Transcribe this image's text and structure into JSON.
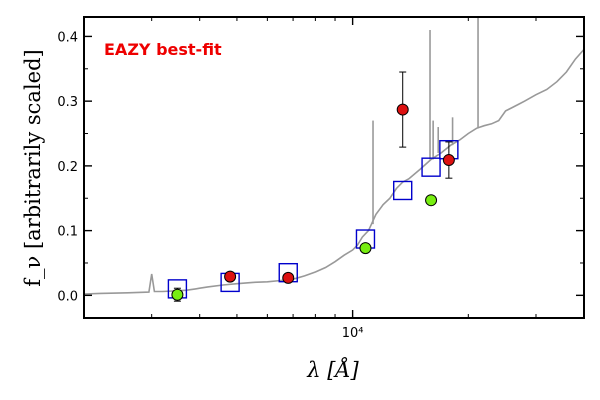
{
  "chart_data": {
    "type": "scatter",
    "annotation": "EAZY best-fit",
    "annotation_color": "#ee0000",
    "xlabel": "λ [Å]",
    "ylabel": "f_ν [arbitrarily scaled]",
    "xscale": "log",
    "xlim": [
      2000,
      40000
    ],
    "ylim": [
      -0.035,
      0.43
    ],
    "x_ticks": [
      {
        "value": 10000,
        "label": "10⁴"
      }
    ],
    "y_ticks": [
      {
        "value": 0.0,
        "label": "0.0"
      },
      {
        "value": 0.1,
        "label": "0.1"
      },
      {
        "value": 0.2,
        "label": "0.2"
      },
      {
        "value": 0.3,
        "label": "0.3"
      },
      {
        "value": 0.4,
        "label": "0.4"
      }
    ],
    "grid": false,
    "colors": {
      "template": "#999999",
      "model": "#0000cc",
      "red": "#dd1111",
      "green": "#77ee11",
      "errorbar": "#000000"
    },
    "template_sed": {
      "x": [
        2000,
        2200,
        2600,
        2950,
        3000,
        3050,
        3200,
        3500,
        3700,
        3900,
        4000,
        4200,
        4600,
        5000,
        5500,
        6000,
        6500,
        7000,
        7500,
        8000,
        8500,
        9000,
        9500,
        10000,
        10300,
        10600,
        11000,
        11200,
        11500,
        12000,
        12500,
        13000,
        13500,
        14000,
        15000,
        16000,
        17000,
        18000,
        19000,
        20000,
        21000,
        22000,
        23000,
        24000,
        25000,
        26000,
        27000,
        28000,
        30000,
        32000,
        34000,
        36000,
        38000,
        40000
      ],
      "y": [
        0.002,
        0.003,
        0.004,
        0.005,
        0.033,
        0.006,
        0.006,
        0.007,
        0.008,
        0.01,
        0.011,
        0.013,
        0.016,
        0.018,
        0.02,
        0.021,
        0.023,
        0.025,
        0.03,
        0.036,
        0.043,
        0.052,
        0.062,
        0.07,
        0.078,
        0.09,
        0.1,
        0.11,
        0.125,
        0.14,
        0.15,
        0.165,
        0.175,
        0.18,
        0.195,
        0.21,
        0.22,
        0.232,
        0.24,
        0.25,
        0.258,
        0.262,
        0.265,
        0.27,
        0.285,
        0.29,
        0.295,
        0.3,
        0.31,
        0.318,
        0.33,
        0.345,
        0.365,
        0.38
      ]
    },
    "template_spikes": [
      {
        "x": 11300,
        "ybase": 0.11,
        "ytop": 0.27
      },
      {
        "x": 15900,
        "ybase": 0.21,
        "ytop": 0.41
      },
      {
        "x": 16200,
        "ybase": 0.21,
        "ytop": 0.27
      },
      {
        "x": 16700,
        "ybase": 0.22,
        "ytop": 0.26
      },
      {
        "x": 18200,
        "ybase": 0.232,
        "ytop": 0.275
      },
      {
        "x": 21200,
        "ybase": 0.258,
        "ytop": 0.43
      }
    ],
    "series": [
      {
        "marker": "open-square",
        "points": [
          {
            "x": 3500,
            "y": 0.01
          },
          {
            "x": 4800,
            "y": 0.02
          },
          {
            "x": 6800,
            "y": 0.035
          },
          {
            "x": 10800,
            "y": 0.087
          },
          {
            "x": 13500,
            "y": 0.162
          },
          {
            "x": 16000,
            "y": 0.198
          },
          {
            "x": 17800,
            "y": 0.225
          }
        ]
      },
      {
        "marker": "red-circle",
        "points": [
          {
            "x": 4800,
            "y": 0.029,
            "yerr": 0.003
          },
          {
            "x": 6800,
            "y": 0.027,
            "yerr": 0.006
          },
          {
            "x": 13500,
            "y": 0.287,
            "yerr": 0.058
          },
          {
            "x": 17800,
            "y": 0.209,
            "yerr": 0.028
          }
        ]
      },
      {
        "marker": "green-circle",
        "points": [
          {
            "x": 3500,
            "y": 0.001,
            "yerr": 0.01
          },
          {
            "x": 10800,
            "y": 0.073
          },
          {
            "x": 16000,
            "y": 0.147
          }
        ]
      }
    ]
  }
}
